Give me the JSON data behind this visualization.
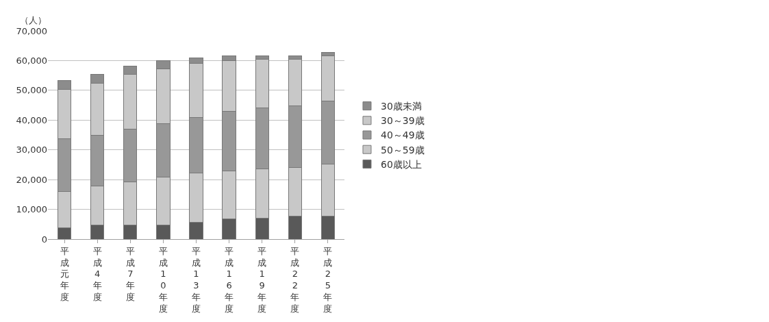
{
  "chart_data": {
    "type": "bar",
    "stacked": true,
    "ylabel": "（人）",
    "categories": [
      "平成元年度",
      "平成4年度",
      "平成7年度",
      "平成10年度",
      "平成13年度",
      "平成16年度",
      "平成19年度",
      "平成22年度",
      "平成25年度"
    ],
    "series": [
      {
        "name": "60歳以上",
        "color": "#595959",
        "values": [
          3900,
          4800,
          4800,
          4800,
          5700,
          6700,
          7000,
          7600,
          7800
        ]
      },
      {
        "name": "50～59歳",
        "color": "#c8c8c8",
        "values": [
          12200,
          13000,
          14500,
          16000,
          16500,
          16200,
          16500,
          16400,
          17300
        ]
      },
      {
        "name": "40～49歳",
        "color": "#989898",
        "values": [
          17600,
          17100,
          17600,
          18000,
          18700,
          20100,
          20700,
          20900,
          21400
        ]
      },
      {
        "name": "30～39歳",
        "color": "#c8c8c8",
        "values": [
          16500,
          17400,
          18500,
          18500,
          18100,
          16900,
          16200,
          15600,
          15200
        ]
      },
      {
        "name": "30歳未満",
        "color": "#8c8c8c",
        "values": [
          3100,
          3100,
          2800,
          2600,
          2000,
          1700,
          1200,
          1100,
          1000
        ]
      }
    ],
    "ylim": [
      0,
      70000
    ],
    "yticks": [
      0,
      {
        "value": 10000,
        "label": "10,000"
      },
      {
        "value": 20000,
        "label": "20,000"
      },
      {
        "value": 30000,
        "label": "30,000"
      },
      {
        "value": 40000,
        "label": "40,000"
      },
      {
        "value": 50000,
        "label": "50,000"
      },
      {
        "value": 60000,
        "label": "60,000"
      },
      {
        "value": 70000,
        "label": "70,000"
      }
    ],
    "grid": "y",
    "legend": "right"
  }
}
